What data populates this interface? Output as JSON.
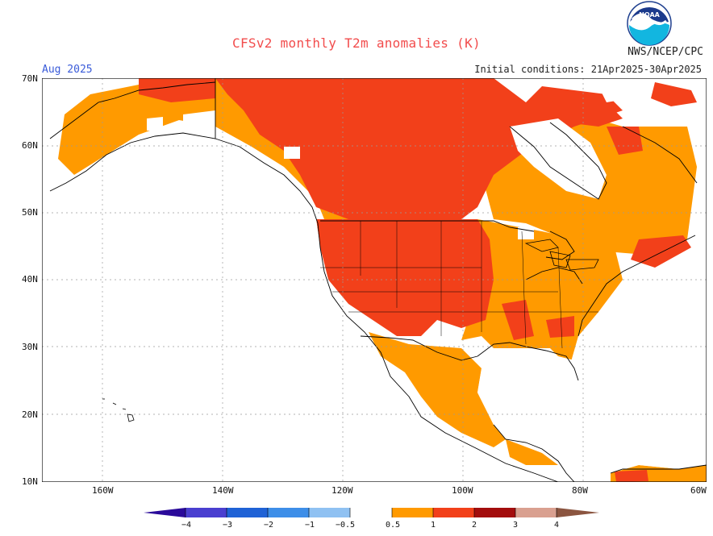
{
  "header": {
    "title": "CFSv2 monthly T2m anomalies (K)",
    "month": "Aug 2025",
    "initial_conditions": "Initial conditions: 21Apr2025-30Apr2025",
    "agency": "NWS/NCEP/CPC",
    "logo_text": "NOAA"
  },
  "axes": {
    "lat_labels": [
      "70N",
      "60N",
      "50N",
      "40N",
      "30N",
      "20N",
      "10N"
    ],
    "lon_labels": [
      "160W",
      "140W",
      "120W",
      "100W",
      "80W",
      "60W"
    ]
  },
  "legend": {
    "ticks": [
      "−4",
      "−3",
      "−2",
      "−1",
      "−0.5",
      "0.5",
      "1",
      "2",
      "3",
      "4"
    ],
    "colors": {
      "lt_neg4": "#2a0a9a",
      "neg4_neg3": "#4a3fd0",
      "neg3_neg2": "#1f62d6",
      "neg2_neg1": "#3d8ee8",
      "neg1_neg05": "#8fc1f2",
      "neutral": "#ffffff",
      "p05_1": "#ff9a00",
      "p1_2": "#f2401a",
      "p2_3": "#a30d0d",
      "p3_4": "#d9a090",
      "gt4": "#8b5540"
    }
  },
  "map_colors": {
    "ocean": "#ffffff",
    "orange": "#ff9a00",
    "red": "#f2401a",
    "border": "#000000",
    "grid": "#9a9a9a"
  }
}
